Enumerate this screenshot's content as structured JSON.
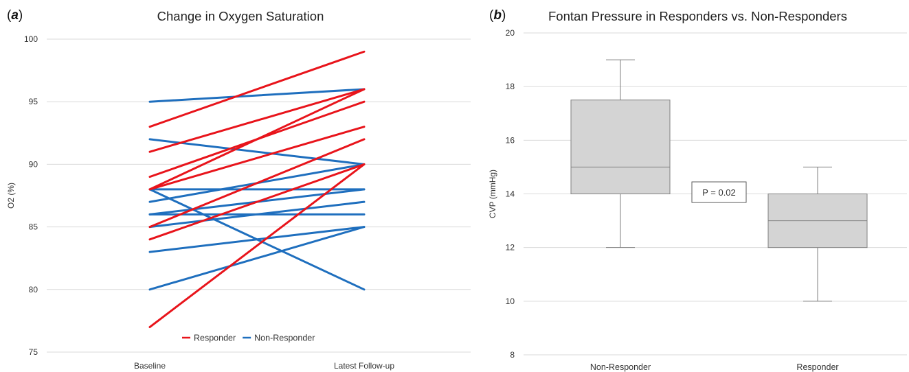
{
  "panels": {
    "a": {
      "letter_open": "(",
      "letter": "a",
      "letter_close": ")"
    },
    "b": {
      "letter_open": "(",
      "letter": "b",
      "letter_close": ")"
    }
  },
  "chart_data": [
    {
      "type": "line",
      "title": "Change in Oxygen Saturation",
      "xlabel": "",
      "ylabel": "O2 (%)",
      "categories": [
        "Baseline",
        "Latest Follow-up"
      ],
      "ylim": [
        75,
        100
      ],
      "yticks": [
        75,
        80,
        85,
        90,
        95,
        100
      ],
      "grid": true,
      "legend": {
        "position": "bottom",
        "entries": [
          {
            "label": "Responder",
            "color": "#e8141b"
          },
          {
            "label": "Non-Responder",
            "color": "#1f6fbe"
          }
        ]
      },
      "colors": {
        "Responder": "#e8141b",
        "Non-Responder": "#1f6fbe"
      },
      "series": [
        {
          "group": "Non-Responder",
          "values": [
            95,
            96
          ]
        },
        {
          "group": "Non-Responder",
          "values": [
            92,
            90
          ]
        },
        {
          "group": "Non-Responder",
          "values": [
            88,
            88
          ]
        },
        {
          "group": "Non-Responder",
          "values": [
            88,
            80
          ]
        },
        {
          "group": "Non-Responder",
          "values": [
            87,
            90
          ]
        },
        {
          "group": "Non-Responder",
          "values": [
            86,
            88
          ]
        },
        {
          "group": "Non-Responder",
          "values": [
            86,
            86
          ]
        },
        {
          "group": "Non-Responder",
          "values": [
            85,
            87
          ]
        },
        {
          "group": "Non-Responder",
          "values": [
            83,
            85
          ]
        },
        {
          "group": "Non-Responder",
          "values": [
            80,
            85
          ]
        },
        {
          "group": "Responder",
          "values": [
            93,
            99
          ]
        },
        {
          "group": "Responder",
          "values": [
            91,
            96
          ]
        },
        {
          "group": "Responder",
          "values": [
            89,
            95
          ]
        },
        {
          "group": "Responder",
          "values": [
            88,
            96
          ]
        },
        {
          "group": "Responder",
          "values": [
            88,
            93
          ]
        },
        {
          "group": "Responder",
          "values": [
            85,
            92
          ]
        },
        {
          "group": "Responder",
          "values": [
            84,
            90
          ]
        },
        {
          "group": "Responder",
          "values": [
            77,
            90
          ]
        }
      ]
    },
    {
      "type": "box",
      "title": "Fontan Pressure in Responders vs. Non-Responders",
      "xlabel": "",
      "ylabel": "CVP (mmHg)",
      "ylim": [
        8,
        20
      ],
      "yticks": [
        8,
        10,
        12,
        14,
        16,
        18,
        20
      ],
      "grid": true,
      "box_color": "#d4d4d4",
      "categories": [
        "Non-Responder",
        "Responder"
      ],
      "boxes": [
        {
          "category": "Non-Responder",
          "min": 12,
          "q1": 14,
          "median": 15,
          "q3": 17.5,
          "max": 19
        },
        {
          "category": "Responder",
          "min": 10,
          "q1": 12,
          "median": 13,
          "q3": 14,
          "max": 15
        }
      ],
      "annotation": "P = 0.02"
    }
  ]
}
